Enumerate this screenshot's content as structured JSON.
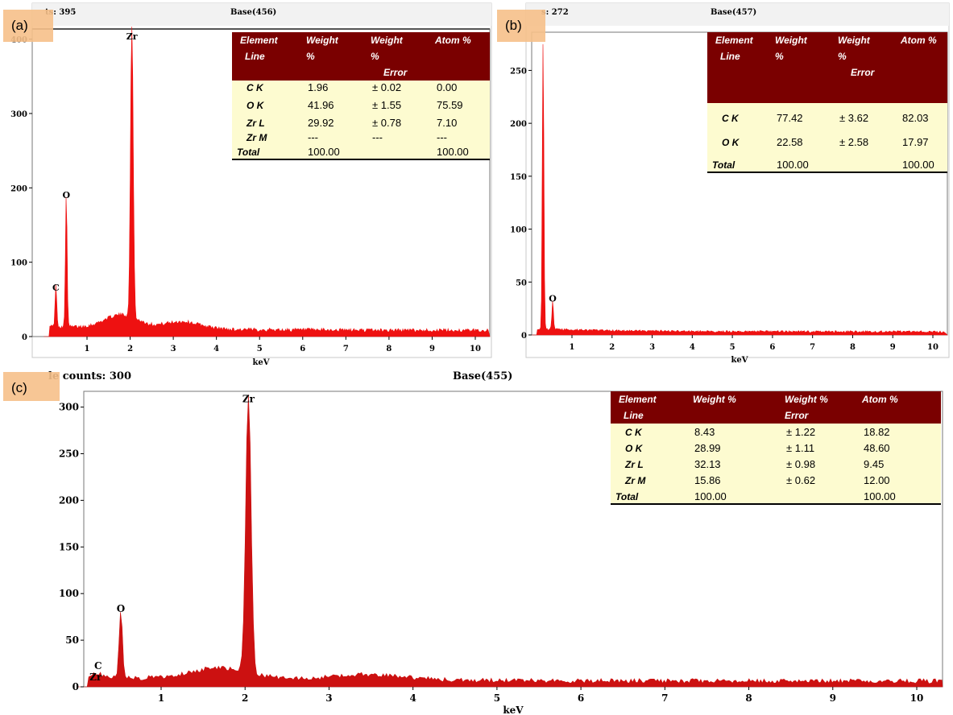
{
  "chart_data": [
    {
      "panel": "(a)",
      "type": "area",
      "header_left": "ts: 395",
      "header_right": "Base(456)",
      "xlabel": "keV",
      "xlim": [
        0,
        10.3
      ],
      "ylim": [
        0,
        405
      ],
      "x_ticks": [
        1,
        2,
        3,
        4,
        5,
        6,
        7,
        8,
        9,
        10
      ],
      "y_ticks": [
        0,
        100,
        200,
        300,
        400
      ],
      "peaks": [
        {
          "label": "C",
          "x": 0.28,
          "y": 55
        },
        {
          "label": "O",
          "x": 0.52,
          "y": 180
        },
        {
          "label": "Zr",
          "x": 2.04,
          "y": 393
        }
      ],
      "table": {
        "headers": [
          "Element Line",
          "Weight %",
          "Weight % Error",
          "Atom %"
        ],
        "rows": [
          [
            "C K",
            "1.96",
            "± 0.02",
            "0.00"
          ],
          [
            "O K",
            "41.96",
            "± 1.55",
            "75.59"
          ],
          [
            "Zr L",
            "29.92",
            "± 0.78",
            "7.10"
          ],
          [
            "Zr M",
            "---",
            "---",
            "---"
          ],
          [
            "Total",
            "100.00",
            "",
            "100.00"
          ]
        ]
      }
    },
    {
      "panel": "(b)",
      "type": "area",
      "header_left": "s: 272",
      "header_right": "Base(457)",
      "xlabel": "keV",
      "xlim": [
        0,
        10.3
      ],
      "ylim": [
        0,
        280
      ],
      "x_ticks": [
        1,
        2,
        3,
        4,
        5,
        6,
        7,
        8,
        9,
        10
      ],
      "y_ticks": [
        0,
        50,
        100,
        150,
        200,
        250
      ],
      "peaks": [
        {
          "label": "C",
          "x": 0.28,
          "y": 272
        },
        {
          "label": "O",
          "x": 0.52,
          "y": 27
        }
      ],
      "table": {
        "headers": [
          "Element Line",
          "Weight %",
          "Weight % Error",
          "Atom %"
        ],
        "rows": [
          [
            "C K",
            "77.42",
            "± 3.62",
            "82.03"
          ],
          [
            "O K",
            "22.58",
            "± 2.58",
            "17.97"
          ],
          [
            "Total",
            "100.00",
            "",
            "100.00"
          ]
        ]
      }
    },
    {
      "panel": "(c)",
      "type": "area",
      "header_left": "le counts: 300",
      "header_right": "Base(455)",
      "xlabel": "keV",
      "xlim": [
        0,
        10.3
      ],
      "ylim": [
        0,
        310
      ],
      "x_ticks": [
        1,
        2,
        3,
        4,
        5,
        6,
        7,
        8,
        9,
        10
      ],
      "y_ticks": [
        0,
        50,
        100,
        150,
        200,
        250,
        300
      ],
      "peaks": [
        {
          "label": "C",
          "x": 0.28,
          "y": 5
        },
        {
          "label": "Zr",
          "x": 0.2,
          "y": 3
        },
        {
          "label": "O",
          "x": 0.52,
          "y": 75
        },
        {
          "label": "Zr",
          "x": 2.04,
          "y": 300
        }
      ],
      "table": {
        "headers": [
          "Element Line",
          "Weight %",
          "Weight % Error",
          "Atom %"
        ],
        "rows": [
          [
            "C K",
            "8.43",
            "± 1.22",
            "18.82"
          ],
          [
            "O K",
            "28.99",
            "± 1.11",
            "48.60"
          ],
          [
            "Zr L",
            "32.13",
            "± 0.98",
            "9.45"
          ],
          [
            "Zr M",
            "15.86",
            "± 0.62",
            "12.00"
          ],
          [
            "Total",
            "100.00",
            "",
            "100.00"
          ]
        ]
      }
    }
  ],
  "colors": {
    "spectrum_a": "#ee1111",
    "spectrum_b": "#ee1111",
    "spectrum_c": "#cc1111",
    "table_header": "#7a0000",
    "table_body": "#fdfbd0",
    "panel_label_bg": "#f6c08a"
  }
}
